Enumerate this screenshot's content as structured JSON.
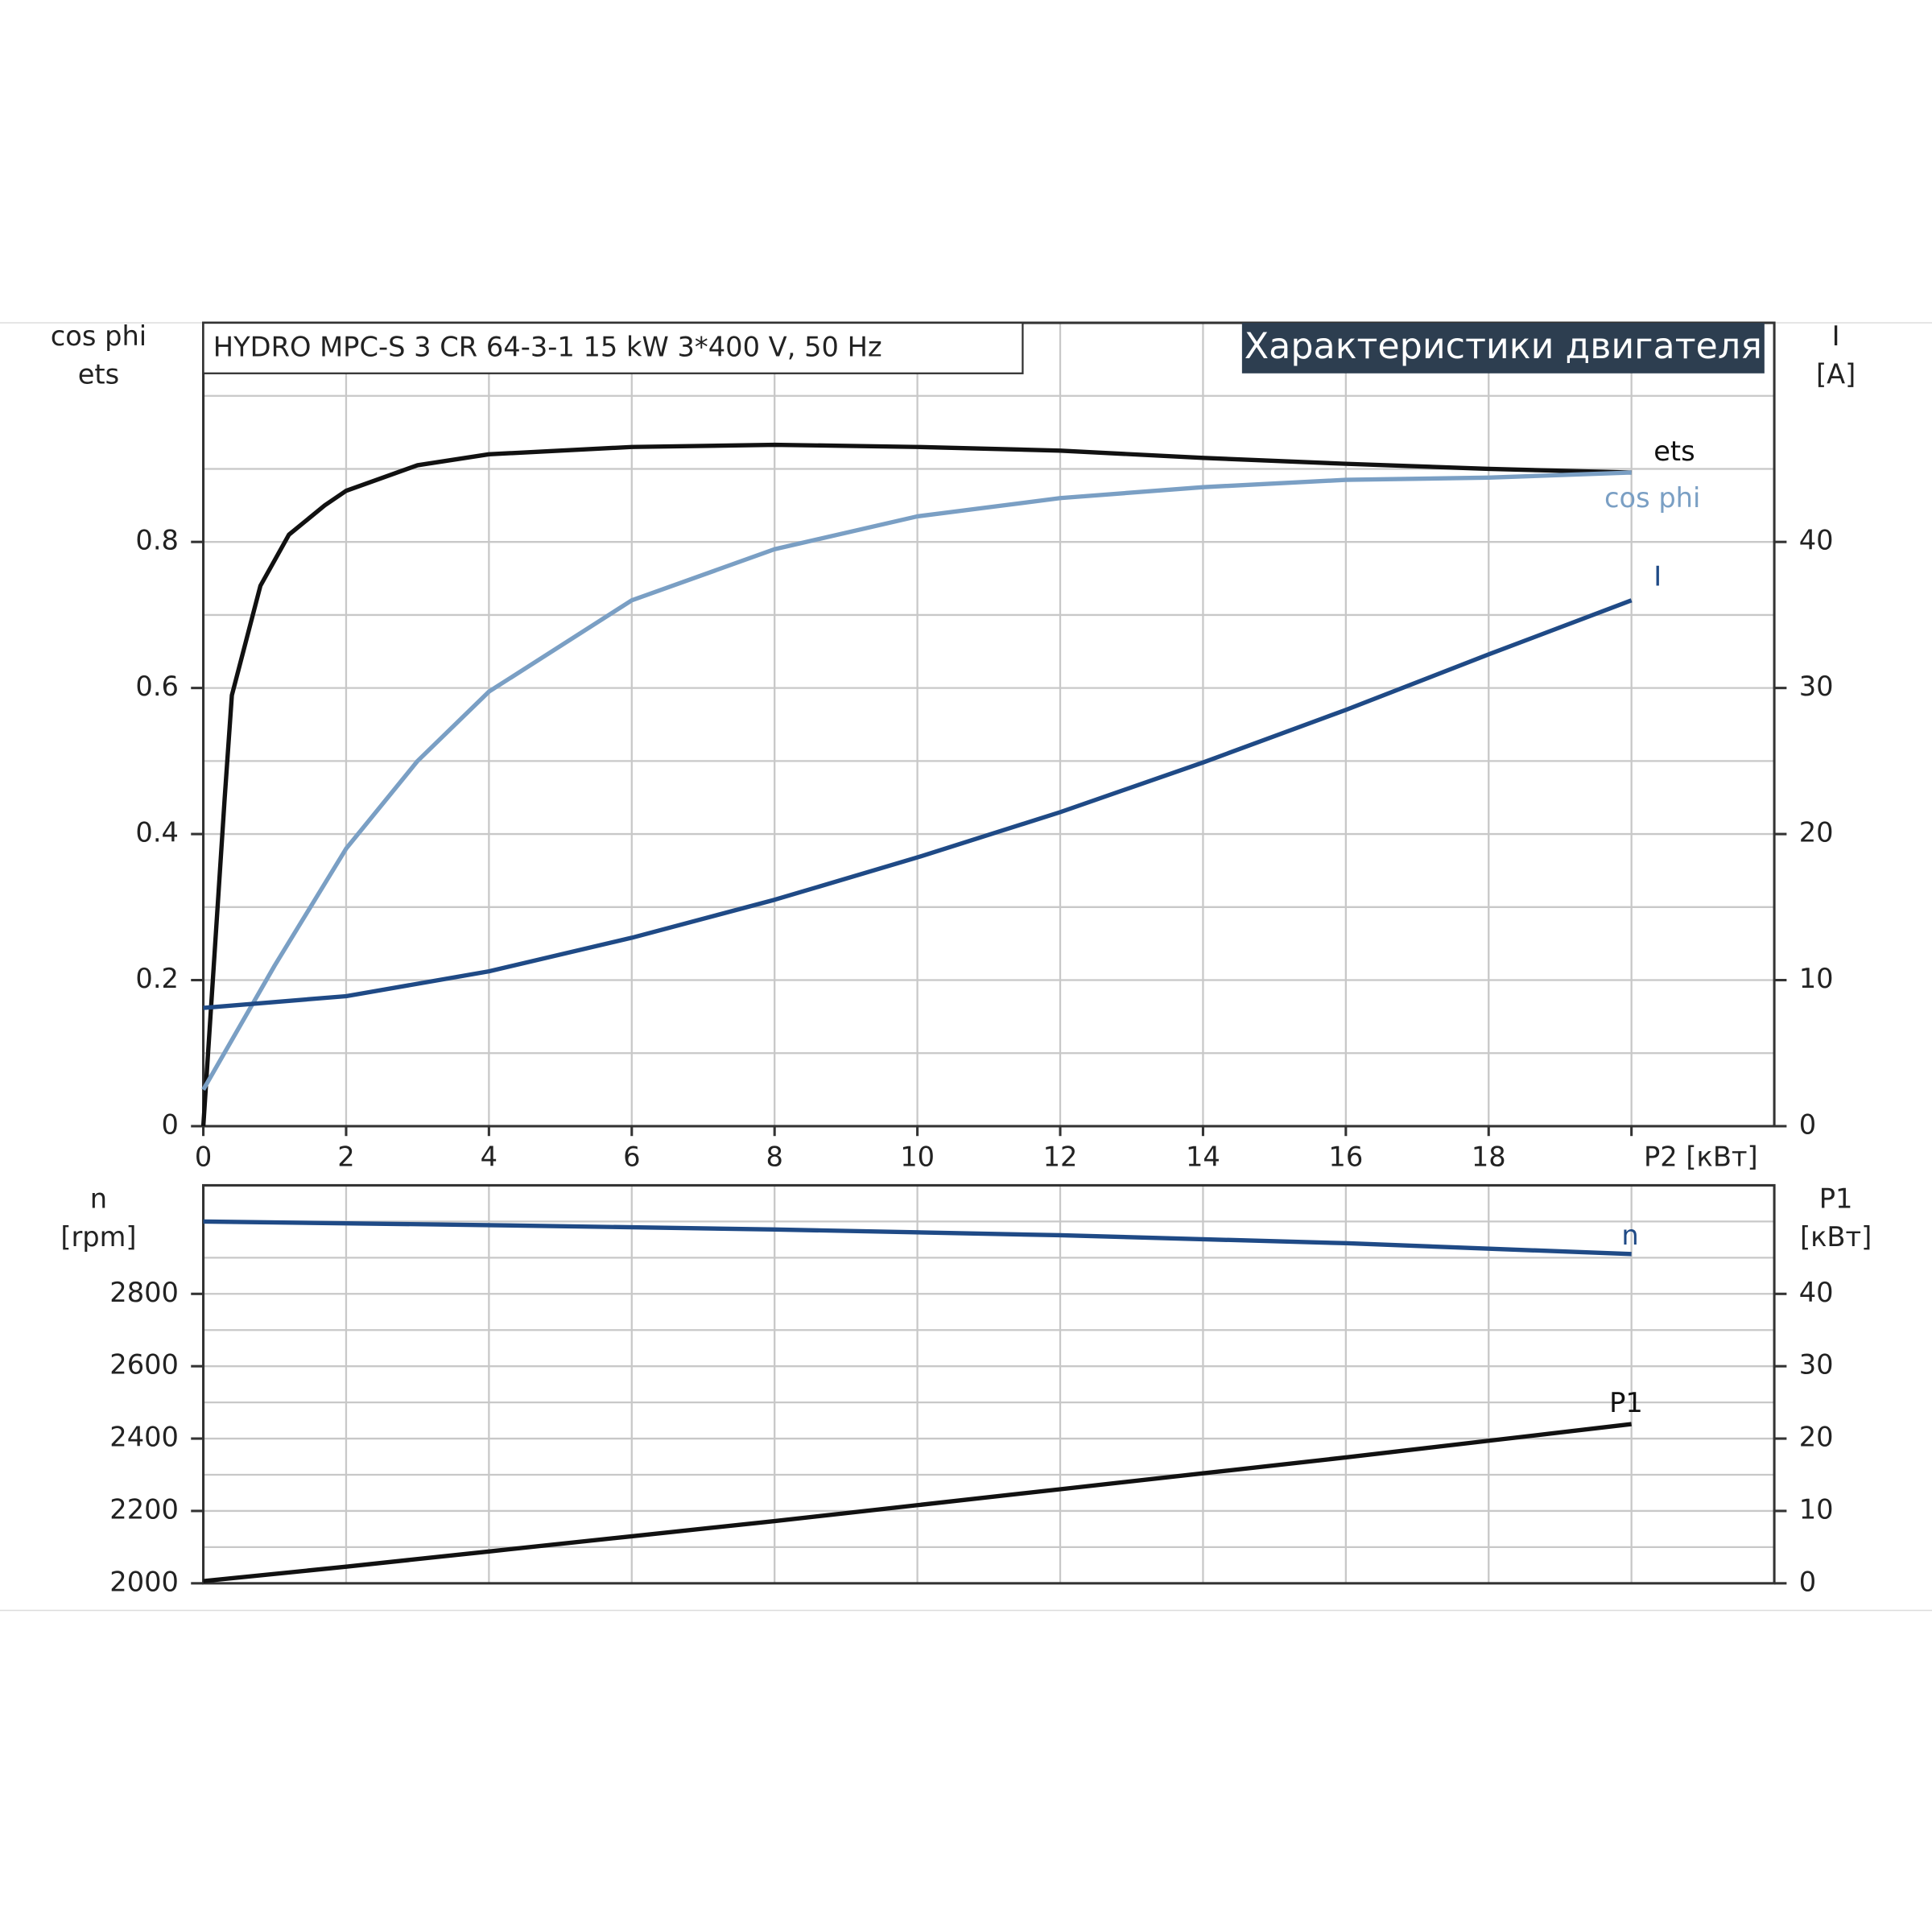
{
  "chart_data": [
    {
      "type": "line",
      "title": "HYDRO MPC-S 3 CR 64-3-1   15 kW   3*400 V, 50 Hz",
      "subtitle": "Характеристики двигателя",
      "ylabel": [
        "cos phi",
        "ets"
      ],
      "y2label": [
        "I",
        "[A]"
      ],
      "xlim": [
        0,
        22
      ],
      "xticks": [
        0,
        2,
        4,
        6,
        8,
        10,
        12,
        14,
        16,
        18,
        {
          "value": 20,
          "label": "P2 [кВт]"
        }
      ],
      "ylim": [
        0,
        1.1
      ],
      "yticks": [
        0.0,
        0.2,
        0.4,
        0.6,
        0.8
      ],
      "ygrid": [
        0.1,
        0.3,
        0.5,
        0.7,
        0.9,
        1.0
      ],
      "y2lim": [
        0,
        55
      ],
      "y2ticks": [
        0,
        10,
        20,
        30,
        40
      ],
      "grid": true,
      "series": [
        {
          "name": "ets",
          "color": "#111111",
          "x": [
            0,
            0.1,
            0.3,
            0.4,
            0.8,
            1.2,
            1.7,
            2,
            3,
            4,
            6,
            8,
            10,
            12,
            14,
            16,
            18,
            20
          ],
          "values": [
            0,
            0.15,
            0.45,
            0.59,
            0.74,
            0.81,
            0.85,
            0.87,
            0.905,
            0.92,
            0.93,
            0.933,
            0.93,
            0.925,
            0.915,
            0.907,
            0.9,
            0.895
          ]
        },
        {
          "name": "cos phi",
          "color": "#7a9fc4",
          "x": [
            0,
            1,
            2,
            3,
            4,
            6,
            8,
            10,
            12,
            14,
            16,
            18,
            20
          ],
          "values": [
            0.05,
            0.22,
            0.38,
            0.5,
            0.595,
            0.72,
            0.79,
            0.835,
            0.86,
            0.875,
            0.885,
            0.888,
            0.895
          ]
        },
        {
          "name": "I",
          "color": "#1f4a86",
          "axis": "y2",
          "x": [
            0,
            2,
            4,
            6,
            8,
            10,
            12,
            14,
            16,
            18,
            20
          ],
          "values": [
            8.1,
            8.9,
            10.6,
            12.9,
            15.5,
            18.4,
            21.5,
            24.9,
            28.5,
            32.3,
            36
          ]
        }
      ]
    },
    {
      "type": "line",
      "ylabel": [
        "n",
        "[rpm]"
      ],
      "y2label": [
        "P1",
        "[кВт]"
      ],
      "xlim": [
        0,
        22
      ],
      "xgrid": [
        0,
        2,
        4,
        6,
        8,
        10,
        12,
        14,
        16,
        18,
        20
      ],
      "ylim": [
        2000,
        3100
      ],
      "yticks": [
        2000,
        2200,
        2400,
        2600,
        2800
      ],
      "ygrid": [
        2100,
        2300,
        2500,
        2700,
        2900,
        3000
      ],
      "y2lim": [
        0,
        55
      ],
      "y2ticks": [
        0,
        10,
        20,
        30,
        40
      ],
      "grid": true,
      "series": [
        {
          "name": "n",
          "color": "#1f4a86",
          "x": [
            0,
            4,
            8,
            12,
            16,
            20
          ],
          "values": [
            3000,
            2990,
            2978,
            2962,
            2940,
            2910
          ]
        },
        {
          "name": "P1",
          "color": "#111111",
          "axis": "y2",
          "x": [
            0,
            2,
            4,
            6,
            8,
            10,
            12,
            14,
            16,
            18,
            20
          ],
          "values": [
            0.3,
            2.3,
            4.4,
            6.5,
            8.6,
            10.8,
            13,
            15.2,
            17.4,
            19.7,
            22
          ]
        }
      ]
    }
  ]
}
